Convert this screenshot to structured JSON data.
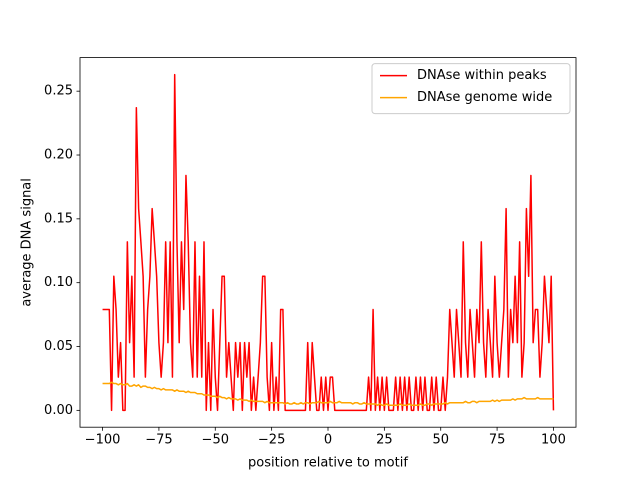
{
  "chart_data": {
    "type": "line",
    "xlabel": "position relative to motif",
    "ylabel": "average DNA signal",
    "x": [
      -100,
      -99,
      -98,
      -97,
      -96,
      -95,
      -94,
      -93,
      -92,
      -91,
      -90,
      -89,
      -88,
      -87,
      -86,
      -85,
      -84,
      -83,
      -82,
      -81,
      -80,
      -79,
      -78,
      -77,
      -76,
      -75,
      -74,
      -73,
      -72,
      -71,
      -70,
      -69,
      -68,
      -67,
      -66,
      -65,
      -64,
      -63,
      -62,
      -61,
      -60,
      -59,
      -58,
      -57,
      -56,
      -55,
      -54,
      -53,
      -52,
      -51,
      -50,
      -49,
      -48,
      -47,
      -46,
      -45,
      -44,
      -43,
      -42,
      -41,
      -40,
      -39,
      -38,
      -37,
      -36,
      -35,
      -34,
      -33,
      -32,
      -31,
      -30,
      -29,
      -28,
      -27,
      -26,
      -25,
      -24,
      -23,
      -22,
      -21,
      -20,
      -19,
      -18,
      -17,
      -16,
      -15,
      -14,
      -13,
      -12,
      -11,
      -10,
      -9,
      -8,
      -7,
      -6,
      -5,
      -4,
      -3,
      -2,
      -1,
      0,
      1,
      2,
      3,
      4,
      5,
      6,
      7,
      8,
      9,
      10,
      11,
      12,
      13,
      14,
      15,
      16,
      17,
      18,
      19,
      20,
      21,
      22,
      23,
      24,
      25,
      26,
      27,
      28,
      29,
      30,
      31,
      32,
      33,
      34,
      35,
      36,
      37,
      38,
      39,
      40,
      41,
      42,
      43,
      44,
      45,
      46,
      47,
      48,
      49,
      50,
      51,
      52,
      53,
      54,
      55,
      56,
      57,
      58,
      59,
      60,
      61,
      62,
      63,
      64,
      65,
      66,
      67,
      68,
      69,
      70,
      71,
      72,
      73,
      74,
      75,
      76,
      77,
      78,
      79,
      80,
      81,
      82,
      83,
      84,
      85,
      86,
      87,
      88,
      89,
      90,
      91,
      92,
      93,
      94,
      95,
      96,
      97,
      98,
      99,
      100
    ],
    "series": [
      {
        "name": "DNAse within peaks",
        "color": "#ff0000",
        "values": [
          0.079,
          0.079,
          0.079,
          0.079,
          0,
          0.105,
          0.079,
          0.026,
          0.053,
          0,
          0,
          0.132,
          0.053,
          0.105,
          0.026,
          0.237,
          0.158,
          0.132,
          0.105,
          0.026,
          0.079,
          0.105,
          0.158,
          0.132,
          0.105,
          0.053,
          0.026,
          0.053,
          0.132,
          0.053,
          0.132,
          0.026,
          0.263,
          0.132,
          0.053,
          0.132,
          0.079,
          0.184,
          0.132,
          0.053,
          0.026,
          0.132,
          0.026,
          0.105,
          0.026,
          0.132,
          0,
          0.053,
          0,
          0.079,
          0.026,
          0,
          0.053,
          0.105,
          0.105,
          0.026,
          0.053,
          0.026,
          0,
          0.053,
          0.026,
          0.053,
          0,
          0.053,
          0.026,
          0.053,
          0,
          0.026,
          0,
          0.026,
          0.053,
          0.105,
          0.105,
          0.026,
          0,
          0.053,
          0,
          0.026,
          0,
          0.079,
          0.079,
          0,
          0,
          0,
          0,
          0,
          0,
          0,
          0,
          0,
          0,
          0.053,
          0,
          0.053,
          0.026,
          0,
          0,
          0.026,
          0,
          0.026,
          0,
          0.026,
          0.026,
          0,
          0,
          0,
          0,
          0,
          0,
          0,
          0,
          0,
          0,
          0,
          0,
          0,
          0,
          0,
          0.026,
          0,
          0.079,
          0,
          0.026,
          0,
          0.026,
          0,
          0.026,
          0,
          0,
          0,
          0.026,
          0,
          0.026,
          0,
          0.026,
          0,
          0.026,
          0,
          0,
          0.026,
          0,
          0.026,
          0,
          0.026,
          0,
          0,
          0.026,
          0,
          0.026,
          0,
          0,
          0.026,
          0,
          0.026,
          0.079,
          0.053,
          0.026,
          0.079,
          0.053,
          0.026,
          0.132,
          0.053,
          0.026,
          0.079,
          0.053,
          0.026,
          0.079,
          0.053,
          0.132,
          0.053,
          0.026,
          0.079,
          0.053,
          0.026,
          0.105,
          0.053,
          0.026,
          0.053,
          0.079,
          0.158,
          0.026,
          0.079,
          0.053,
          0.105,
          0.053,
          0.132,
          0.026,
          0.053,
          0.158,
          0.105,
          0.184,
          0.053,
          0.079,
          0.079,
          0.026,
          0.053,
          0.105,
          0.079,
          0.053,
          0.105,
          0
        ]
      },
      {
        "name": "DNAse genome wide",
        "color": "#ffa500",
        "values": [
          0.021,
          0.021,
          0.021,
          0.021,
          0.022,
          0.021,
          0.021,
          0.02,
          0.021,
          0.02,
          0.02,
          0.021,
          0.019,
          0.019,
          0.02,
          0.019,
          0.02,
          0.018,
          0.019,
          0.019,
          0.018,
          0.018,
          0.017,
          0.018,
          0.017,
          0.017,
          0.016,
          0.017,
          0.016,
          0.016,
          0.016,
          0.016,
          0.015,
          0.016,
          0.015,
          0.015,
          0.015,
          0.014,
          0.015,
          0.014,
          0.014,
          0.014,
          0.013,
          0.013,
          0.013,
          0.012,
          0.012,
          0.012,
          0.011,
          0.011,
          0.011,
          0.01,
          0.011,
          0.01,
          0.01,
          0.009,
          0.01,
          0.009,
          0.009,
          0.009,
          0.008,
          0.009,
          0.008,
          0.008,
          0.008,
          0.007,
          0.008,
          0.007,
          0.007,
          0.007,
          0.007,
          0.007,
          0.006,
          0.007,
          0.006,
          0.006,
          0.006,
          0.006,
          0.006,
          0.006,
          0.006,
          0.005,
          0.006,
          0.005,
          0.005,
          0.006,
          0.005,
          0.005,
          0.006,
          0.005,
          0.006,
          0.006,
          0.005,
          0.006,
          0.006,
          0.006,
          0.007,
          0.006,
          0.006,
          0.006,
          0.006,
          0.007,
          0.006,
          0.006,
          0.006,
          0.007,
          0.006,
          0.006,
          0.006,
          0.006,
          0.006,
          0.005,
          0.006,
          0.006,
          0.005,
          0.005,
          0.006,
          0.005,
          0.005,
          0.005,
          0.005,
          0.005,
          0.004,
          0.005,
          0.004,
          0.004,
          0.005,
          0.004,
          0.004,
          0.004,
          0.004,
          0.004,
          0.005,
          0.004,
          0.004,
          0.004,
          0.005,
          0.004,
          0.004,
          0.004,
          0.004,
          0.005,
          0.004,
          0.004,
          0.005,
          0.005,
          0.004,
          0.005,
          0.005,
          0.005,
          0.005,
          0.005,
          0.006,
          0.005,
          0.006,
          0.006,
          0.006,
          0.006,
          0.006,
          0.006,
          0.006,
          0.007,
          0.006,
          0.006,
          0.007,
          0.007,
          0.006,
          0.007,
          0.007,
          0.007,
          0.007,
          0.007,
          0.007,
          0.008,
          0.007,
          0.008,
          0.007,
          0.008,
          0.008,
          0.008,
          0.008,
          0.008,
          0.009,
          0.008,
          0.009,
          0.009,
          0.009,
          0.01,
          0.009,
          0.009,
          0.009,
          0.009,
          0.009,
          0.01,
          0.009,
          0.009,
          0.009,
          0.009,
          0.009,
          0.009,
          0.009
        ]
      }
    ],
    "xlim": [
      -110,
      110
    ],
    "ylim": [
      -0.0132,
      0.2763
    ],
    "xticks": [
      {
        "value": -100,
        "label": "−100"
      },
      {
        "value": -75,
        "label": "−75"
      },
      {
        "value": -50,
        "label": "−50"
      },
      {
        "value": -25,
        "label": "−25"
      },
      0,
      25,
      50,
      75,
      100
    ],
    "yticks": [
      {
        "value": 0,
        "label": "0.00"
      },
      {
        "value": 0.05,
        "label": "0.05"
      },
      {
        "value": 0.1,
        "label": "0.10"
      },
      {
        "value": 0.15,
        "label": "0.15"
      },
      {
        "value": 0.2,
        "label": "0.20"
      },
      {
        "value": 0.25,
        "label": "0.25"
      }
    ],
    "legend": "upper right"
  }
}
